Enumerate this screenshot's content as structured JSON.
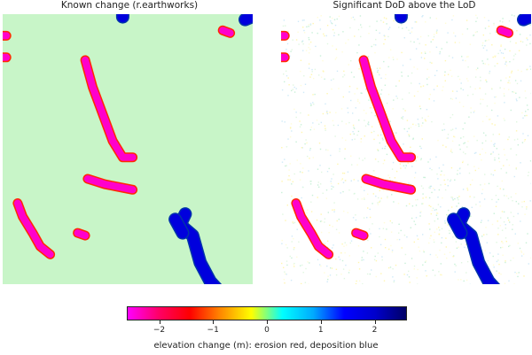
{
  "chart_data": {
    "type": "heatmap",
    "panels": [
      {
        "title": "Known change (r.earthworks)",
        "background": "#c8f5c8",
        "noise": false
      },
      {
        "title": "Significant DoD above the LoD",
        "background": "#ffffff",
        "noise": true
      }
    ],
    "colorbar": {
      "label": "elevation change (m): erosion red, deposition blue",
      "range": [
        -2.6,
        2.6
      ],
      "ticks": [
        {
          "value": -2,
          "label": "−2"
        },
        {
          "value": -1,
          "label": "−1"
        },
        {
          "value": 0,
          "label": "0"
        },
        {
          "value": 1,
          "label": "1"
        },
        {
          "value": 2,
          "label": "2"
        }
      ],
      "colors": [
        "#ff00ff",
        "#ff0066",
        "#ff0000",
        "#ff8800",
        "#ffff00",
        "#00ffff",
        "#00aaff",
        "#0000ff",
        "#0000cc",
        "#000066"
      ]
    },
    "features": [
      {
        "kind": "erosion",
        "color": "#ff00cc",
        "edge": "#ff2a00",
        "points": [
          [
            0.33,
            0.17
          ],
          [
            0.36,
            0.27
          ],
          [
            0.4,
            0.37
          ],
          [
            0.44,
            0.47
          ],
          [
            0.48,
            0.53
          ],
          [
            0.52,
            0.53
          ]
        ]
      },
      {
        "kind": "erosion",
        "color": "#ff00cc",
        "edge": "#ff2a00",
        "points": [
          [
            0.34,
            0.61
          ],
          [
            0.41,
            0.63
          ],
          [
            0.52,
            0.65
          ]
        ]
      },
      {
        "kind": "erosion",
        "color": "#ff00cc",
        "edge": "#ff2a00",
        "points": [
          [
            0.06,
            0.7
          ],
          [
            0.08,
            0.75
          ],
          [
            0.12,
            0.81
          ],
          [
            0.15,
            0.86
          ],
          [
            0.19,
            0.89
          ]
        ]
      },
      {
        "kind": "erosion",
        "color": "#ff00cc",
        "edge": "#ff2a00",
        "points": [
          [
            0.3,
            0.81
          ],
          [
            0.33,
            0.82
          ]
        ]
      },
      {
        "kind": "erosion",
        "color": "#ff00cc",
        "edge": "#ff2a00",
        "points": [
          [
            0.88,
            0.06
          ],
          [
            0.91,
            0.07
          ]
        ]
      },
      {
        "kind": "erosion",
        "color": "#ff00cc",
        "edge": "#ff2a00",
        "points": [
          [
            0.0,
            0.08
          ],
          [
            0.015,
            0.08
          ]
        ]
      },
      {
        "kind": "erosion",
        "color": "#ff00cc",
        "edge": "#ff2a00",
        "points": [
          [
            0.0,
            0.16
          ],
          [
            0.015,
            0.16
          ]
        ]
      },
      {
        "kind": "deposition",
        "color": "#0000dd",
        "edge": "#0033aa",
        "points": [
          [
            0.73,
            0.74
          ],
          [
            0.71,
            0.78
          ],
          [
            0.76,
            0.82
          ],
          [
            0.79,
            0.92
          ],
          [
            0.83,
            0.99
          ],
          [
            0.87,
            1.03
          ]
        ]
      },
      {
        "kind": "deposition",
        "color": "#0000dd",
        "edge": "#0033aa",
        "points": [
          [
            0.69,
            0.76
          ],
          [
            0.72,
            0.81
          ]
        ]
      },
      {
        "kind": "deposition",
        "color": "#0000dd",
        "edge": "#0033aa",
        "points": [
          [
            0.97,
            0.02
          ],
          [
            1.02,
            0.0
          ]
        ]
      },
      {
        "kind": "deposition",
        "color": "#0000dd",
        "edge": "#0033aa",
        "points": [
          [
            0.48,
            -0.02
          ],
          [
            0.48,
            0.01
          ]
        ]
      }
    ]
  }
}
